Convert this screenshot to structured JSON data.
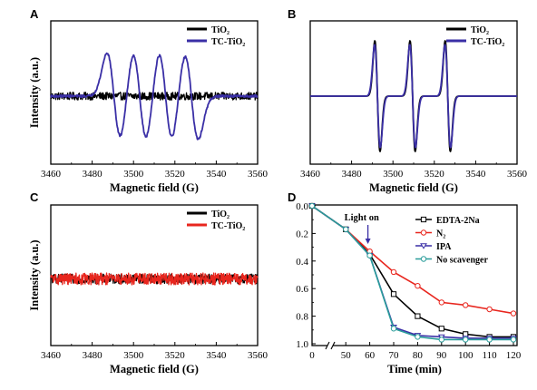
{
  "chart_data": [
    {
      "panel": "A",
      "type": "line",
      "xlabel": "Magnetic field (G)",
      "ylabel": "Intensity (a.u.)",
      "xlim": [
        3460,
        3560
      ],
      "xticks": [
        3460,
        3480,
        3500,
        3520,
        3540,
        3560
      ],
      "ylim": [
        -1,
        1
      ],
      "yticks_shown": false,
      "legend": "top-right",
      "series": [
        {
          "name": "TiO₂",
          "color": "#000000",
          "kind": "noise",
          "noise_amplitude": 0.07
        },
        {
          "name": "TC-TiO₂",
          "color": "#3a2fa6",
          "kind": "esr",
          "lines": [
            {
              "center": 3490.5,
              "amplitude": 0.78,
              "width": 3.3
            },
            {
              "center": 3503.0,
              "amplitude": 0.8,
              "width": 3.3
            },
            {
              "center": 3515.5,
              "amplitude": 0.8,
              "width": 3.3
            },
            {
              "center": 3528.0,
              "amplitude": 0.78,
              "width": 3.3
            }
          ],
          "noise_amplitude": 0.02
        }
      ]
    },
    {
      "panel": "B",
      "type": "line",
      "xlabel": "Magnetic field (G)",
      "ylabel": "",
      "xlim": [
        3460,
        3560
      ],
      "xticks": [
        3460,
        3480,
        3500,
        3520,
        3540,
        3560
      ],
      "ylim": [
        -1,
        1
      ],
      "yticks_shown": false,
      "legend": "top-right",
      "series": [
        {
          "name": "TiO₂",
          "color": "#000000",
          "kind": "esr",
          "lines": [
            {
              "center": 3492.5,
              "amplitude": 1.0,
              "width": 1.25
            },
            {
              "center": 3509.5,
              "amplitude": 1.0,
              "width": 1.25
            },
            {
              "center": 3526.5,
              "amplitude": 1.0,
              "width": 1.25
            }
          ],
          "noise_amplitude": 0.0
        },
        {
          "name": "TC-TiO₂",
          "color": "#3a2fa6",
          "kind": "esr",
          "lines": [
            {
              "center": 3492.5,
              "amplitude": 0.93,
              "width": 1.35
            },
            {
              "center": 3509.5,
              "amplitude": 0.93,
              "width": 1.35
            },
            {
              "center": 3526.5,
              "amplitude": 0.93,
              "width": 1.35
            }
          ],
          "noise_amplitude": 0.0
        }
      ]
    },
    {
      "panel": "C",
      "type": "line",
      "xlabel": "Magnetic field (G)",
      "ylabel": "Intensity (a.u.)",
      "xlim": [
        3460,
        3560
      ],
      "xticks": [
        3460,
        3480,
        3500,
        3520,
        3540,
        3560
      ],
      "ylim": [
        -1,
        1
      ],
      "yticks_shown": false,
      "legend": "top-right",
      "series": [
        {
          "name": "TiO₂",
          "color": "#000000",
          "kind": "noise",
          "noise_amplitude": 0.09
        },
        {
          "name": "TC-TiO₂",
          "color": "#e8261e",
          "kind": "noise",
          "noise_amplitude": 0.11
        }
      ]
    },
    {
      "panel": "D",
      "type": "line",
      "xlabel": "Time (min)",
      "ylabel": "",
      "xlim": [
        0,
        120
      ],
      "axis_break": [
        15,
        45
      ],
      "xticks": [
        0,
        50,
        60,
        70,
        80,
        90,
        100,
        110,
        120
      ],
      "ylim": [
        0.0,
        1.0
      ],
      "y_inverted": true,
      "yticks": [
        0.0,
        0.2,
        0.4,
        0.6,
        0.8,
        1.0
      ],
      "legend": "top-right",
      "annotation": "Light on",
      "annotation_x": 60,
      "series": [
        {
          "name": "EDTA-2Na",
          "color": "#000000",
          "marker": "square",
          "x": [
            0,
            50,
            60,
            70,
            80,
            90,
            100,
            110,
            120
          ],
          "y": [
            0.0,
            0.17,
            0.35,
            0.64,
            0.8,
            0.89,
            0.93,
            0.95,
            0.95
          ]
        },
        {
          "name": "N₂",
          "color": "#e8261e",
          "marker": "circle",
          "x": [
            0,
            50,
            60,
            70,
            80,
            90,
            100,
            110,
            120
          ],
          "y": [
            0.0,
            0.17,
            0.33,
            0.48,
            0.58,
            0.7,
            0.72,
            0.75,
            0.78
          ]
        },
        {
          "name": "IPA",
          "color": "#3a2fa6",
          "marker": "triangle",
          "x": [
            0,
            50,
            60,
            70,
            80,
            90,
            100,
            110,
            120
          ],
          "y": [
            0.0,
            0.17,
            0.36,
            0.88,
            0.94,
            0.95,
            0.96,
            0.96,
            0.96
          ]
        },
        {
          "name": "No scavenger",
          "color": "#2a9d9a",
          "marker": "circle",
          "x": [
            0,
            50,
            60,
            70,
            80,
            90,
            100,
            110,
            120
          ],
          "y": [
            0.0,
            0.17,
            0.36,
            0.89,
            0.95,
            0.97,
            0.97,
            0.97,
            0.97
          ]
        }
      ]
    }
  ]
}
